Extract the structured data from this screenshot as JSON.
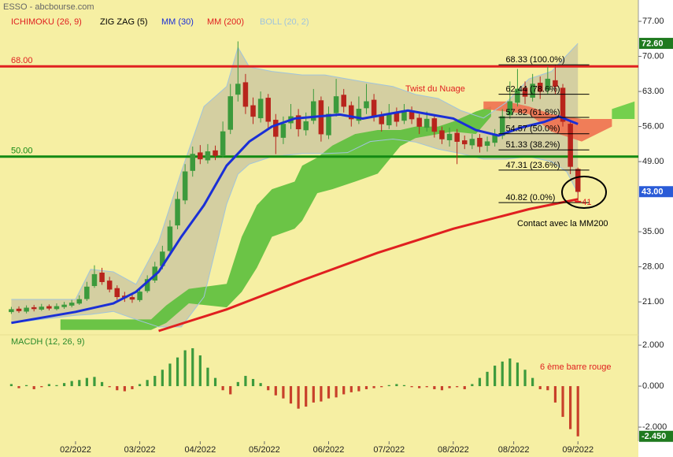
{
  "chart_data": [
    {
      "type": "candlestick",
      "title": "ESSO - abcbourse.com",
      "xlim": [
        0,
        169
      ],
      "ylim": [
        15.2,
        78.9
      ],
      "yticks": [
        {
          "value": 77,
          "label": "77.00"
        },
        {
          "value": 70,
          "label": "70.00"
        },
        {
          "value": 63,
          "label": "63.00"
        },
        {
          "value": 56,
          "label": "56.00"
        },
        {
          "value": 49,
          "label": "49.00"
        },
        {
          "value": 35,
          "label": "35.00"
        },
        {
          "value": 28,
          "label": "28.00"
        },
        {
          "value": 21,
          "label": "21.00"
        }
      ],
      "up_color": "#3c9a3c",
      "down_color": "#b8241c",
      "x": [
        3,
        5,
        7,
        9,
        11,
        13,
        15,
        17,
        19,
        21,
        23,
        25,
        27,
        29,
        31,
        33,
        35,
        37,
        39,
        41,
        43,
        45,
        47,
        49,
        51,
        53,
        55,
        57,
        59,
        61,
        63,
        65,
        67,
        69,
        71,
        73,
        75,
        77,
        79,
        81,
        83,
        85,
        87,
        89,
        91,
        93,
        95,
        97,
        99,
        101,
        103,
        105,
        107,
        109,
        111,
        113,
        115,
        117,
        119,
        121,
        123,
        125,
        127,
        129,
        131,
        133,
        135,
        137,
        139,
        141,
        143,
        145,
        147,
        149,
        151,
        153
      ],
      "open": [
        19.0,
        19.6,
        19.1,
        19.9,
        19.5,
        20.1,
        19.6,
        20.0,
        20.3,
        20.7,
        21.6,
        24.2,
        26.8,
        25.2,
        23.7,
        22.2,
        21.9,
        21.4,
        23.2,
        25.3,
        28.2,
        31.2,
        36.3,
        41.3,
        47.2,
        50.8,
        49.3,
        51.2,
        50.3,
        55.4,
        62.4,
        64.8,
        60.2,
        57.7,
        61.7,
        57.3,
        53.8,
        56.7,
        58.2,
        55.3,
        57.2,
        61.2,
        54.3,
        58.7,
        62.3,
        60.2,
        57.2,
        59.7,
        61.3,
        58.2,
        56.3,
        58.7,
        57.2,
        59.2,
        57.7,
        55.8,
        57.6,
        55.2,
        53.3,
        54.7,
        53.2,
        52.3,
        53.7,
        52.2,
        52.8,
        54.2,
        58.3,
        60.8,
        63.7,
        61.8,
        64.7,
        63.3,
        65.2,
        63.7,
        56.5,
        47.5
      ],
      "high": [
        20.0,
        20.1,
        20.3,
        20.4,
        20.6,
        20.5,
        20.7,
        21.0,
        21.4,
        22.3,
        25.0,
        28.3,
        27.8,
        26.0,
        24.3,
        23.0,
        22.6,
        23.8,
        26.3,
        29.0,
        32.2,
        37.3,
        43.0,
        48.5,
        52.0,
        52.3,
        52.5,
        52.2,
        57.0,
        64.5,
        73.0,
        66.5,
        61.8,
        63.0,
        62.5,
        58.5,
        58.0,
        60.5,
        59.5,
        58.8,
        63.5,
        62.0,
        60.0,
        65.5,
        63.5,
        61.0,
        62.0,
        64.5,
        62.5,
        59.0,
        60.5,
        59.8,
        60.5,
        60.0,
        58.5,
        59.0,
        58.2,
        56.0,
        55.8,
        55.5,
        54.2,
        54.5,
        54.5,
        54.0,
        55.5,
        59.5,
        65.0,
        67.5,
        65.0,
        66.5,
        66.0,
        68.0,
        68.3,
        64.5,
        57.0,
        47.8
      ],
      "low": [
        18.6,
        18.8,
        18.7,
        19.1,
        19.2,
        19.3,
        19.3,
        19.6,
        19.9,
        20.4,
        21.2,
        23.8,
        24.4,
        22.9,
        21.4,
        21.0,
        20.8,
        21.0,
        22.8,
        24.8,
        27.5,
        30.5,
        35.5,
        40.5,
        46.0,
        48.5,
        48.6,
        49.3,
        49.8,
        54.5,
        61.0,
        58.5,
        56.5,
        56.8,
        55.5,
        50.5,
        52.5,
        55.5,
        54.0,
        54.2,
        56.5,
        53.0,
        53.5,
        58.0,
        58.8,
        56.0,
        56.5,
        58.5,
        57.0,
        55.0,
        55.5,
        56.0,
        56.5,
        56.5,
        54.5,
        55.0,
        53.8,
        52.5,
        52.0,
        48.5,
        51.5,
        51.5,
        50.8,
        51.0,
        52.0,
        53.5,
        57.5,
        60.0,
        60.5,
        61.0,
        61.5,
        62.5,
        62.5,
        56.0,
        46.5,
        41.0
      ],
      "close": [
        19.5,
        19.2,
        19.8,
        19.6,
        20.0,
        19.7,
        20.1,
        20.4,
        20.8,
        21.5,
        24.0,
        26.5,
        25.0,
        23.5,
        22.0,
        21.8,
        21.5,
        23.0,
        25.5,
        28.0,
        31.0,
        36.0,
        41.5,
        47.0,
        50.5,
        49.5,
        51.0,
        50.2,
        55.0,
        62.0,
        64.5,
        60.0,
        58.0,
        61.5,
        57.0,
        54.0,
        56.5,
        58.0,
        55.5,
        57.0,
        61.0,
        54.5,
        58.5,
        62.0,
        60.0,
        57.5,
        59.5,
        61.0,
        58.0,
        56.5,
        58.5,
        57.0,
        59.0,
        57.5,
        56.0,
        57.5,
        55.0,
        53.5,
        54.5,
        53.0,
        52.5,
        53.5,
        52.0,
        53.0,
        54.5,
        58.0,
        61.0,
        63.5,
        62.0,
        64.5,
        63.0,
        65.5,
        64.0,
        57.0,
        48.0,
        43.0
      ],
      "ichimoku": {
        "name": "ICHIMOKU (26, 9)",
        "color": "#e02020",
        "pieces": [
          {
            "color": "#5cbf3c",
            "x": [
              16,
              30,
              40,
              44,
              50,
              60,
              64,
              68,
              72,
              78,
              80,
              84,
              88,
              94,
              100,
              106,
              110,
              116,
              120,
              126,
              130
            ],
            "upper": [
              17.5,
              17.5,
              17.5,
              20.3,
              23.6,
              24.6,
              34.0,
              40.3,
              43.5,
              45.0,
              48.2,
              49.8,
              52.2,
              54.5,
              55.3,
              55.3,
              56.0,
              56.0,
              57.0,
              59.0,
              60.0
            ],
            "lower": [
              15.4,
              15.4,
              15.4,
              16.8,
              20.7,
              19.9,
              23.0,
              27.8,
              34.0,
              35.6,
              37.2,
              42.7,
              43.5,
              45.0,
              46.6,
              52.1,
              53.7,
              54.5,
              55.0,
              54.5,
              58.0
            ]
          },
          {
            "color": "#f07050",
            "x": [
              128,
              134,
              140,
              146,
              150,
              154,
              158,
              162
            ],
            "upper": [
              61.0,
              61.0,
              60.0,
              58.5,
              58.0,
              57.5,
              57.5,
              57.5
            ],
            "lower": [
              59.5,
              59.0,
              58.5,
              55.0,
              54.0,
              53.0,
              54.5,
              56.0
            ]
          },
          {
            "color": "#66cc44",
            "x": [
              162,
              168
            ],
            "upper": [
              59.5,
              61.0
            ],
            "lower": [
              57.5,
              57.5
            ]
          }
        ]
      },
      "zigzag": {
        "name": "ZIG ZAG (5)",
        "color": "#000000"
      },
      "bollinger": {
        "name": "BOLL (20, 2)",
        "color": "#a0c4dc",
        "fill": "#c8c4a0",
        "x": [
          3,
          20,
          24,
          30,
          36,
          42,
          48,
          54,
          60,
          63,
          66,
          72,
          80,
          86,
          92,
          98,
          104,
          110,
          116,
          122,
          128,
          134,
          140,
          146,
          150,
          153
        ],
        "upper": [
          21.5,
          21.5,
          27.5,
          27.0,
          24.5,
          33.0,
          47.0,
          60.0,
          64.0,
          71.8,
          67.9,
          67.0,
          66.3,
          66.3,
          65.5,
          64.7,
          64.0,
          62.4,
          61.6,
          59.2,
          57.7,
          60.8,
          65.5,
          67.0,
          70.2,
          72.6
        ],
        "lower": [
          16.8,
          18.3,
          18.5,
          19.1,
          17.5,
          16.0,
          16.0,
          22.0,
          40.5,
          46.5,
          48.5,
          50.0,
          50.6,
          50.6,
          50.8,
          53.0,
          53.5,
          52.9,
          51.5,
          50.6,
          49.5,
          49.5,
          50.0,
          49.0,
          47.0,
          42.7
        ]
      },
      "series": [
        {
          "name": "MM (30)",
          "color": "#1a2fd6",
          "x": [
            3,
            20,
            30,
            36,
            42,
            48,
            54,
            60,
            66,
            72,
            78,
            84,
            90,
            96,
            102,
            108,
            114,
            120,
            126,
            132,
            138,
            144,
            148,
            153
          ],
          "values": [
            16.8,
            19.0,
            20.7,
            23.0,
            27.0,
            34.0,
            40.3,
            48.2,
            53.0,
            56.0,
            57.6,
            58.0,
            58.4,
            57.6,
            58.4,
            59.2,
            58.4,
            57.6,
            55.3,
            54.2,
            55.8,
            56.9,
            58.0,
            56.5
          ]
        },
        {
          "name": "MM (200)",
          "color": "#e02020",
          "x": [
            42,
            60,
            80,
            100,
            120,
            140,
            153
          ],
          "values": [
            15.2,
            19.5,
            25.3,
            30.8,
            35.6,
            39.5,
            41.5
          ]
        }
      ],
      "levels": [
        {
          "value": 68,
          "label": "68.00",
          "color": "#e02020"
        },
        {
          "value": 50,
          "label": "50.00",
          "color": "#138a13"
        }
      ],
      "fib_range": [
        132,
        156
      ],
      "fib_levels": [
        {
          "value": 68.33,
          "label": "68.33 (100.0%)"
        },
        {
          "value": 62.44,
          "label": "62.44 (78.6%)"
        },
        {
          "value": 57.82,
          "label": "57.82 (61.8%)"
        },
        {
          "value": 54.57,
          "label": "54.57 (50.0%)"
        },
        {
          "value": 51.33,
          "label": "51.33 (38.2%)"
        },
        {
          "value": 47.31,
          "label": "47.31 (23.6%)"
        },
        {
          "value": 40.82,
          "label": "40.82 (0.0%)"
        }
      ],
      "price_labels": [
        {
          "value": 72.6,
          "label": "72.60",
          "color": "#1f7a1f"
        },
        {
          "value": 43.0,
          "label": "43.00",
          "color": "#2a5bd7"
        }
      ],
      "annotations": [
        "Twist du Nuage",
        "Contact avec la MM200"
      ],
      "low_label": 41
    },
    {
      "type": "bar",
      "title": "MACDH (12, 26, 9)",
      "xlim": [
        0,
        169
      ],
      "ylim": [
        -2.69,
        2.31
      ],
      "yticks": [
        {
          "value": 2,
          "label": "2.000"
        },
        {
          "value": 0,
          "label": "0.000"
        },
        {
          "value": -2,
          "label": "-2.000"
        }
      ],
      "xticks": [
        {
          "value": 20,
          "label": "02/2022"
        },
        {
          "value": 37,
          "label": "03/2022"
        },
        {
          "value": 53,
          "label": "04/2022"
        },
        {
          "value": 70,
          "label": "05/2022"
        },
        {
          "value": 87,
          "label": "06/2022"
        },
        {
          "value": 103,
          "label": "07/2022"
        },
        {
          "value": 120,
          "label": "08/2022"
        },
        {
          "value": 136,
          "label": "08/2022"
        },
        {
          "value": 153,
          "label": "09/2022"
        }
      ],
      "up_color": "#3c9a3c",
      "down_color": "#c8402a",
      "x": [
        3,
        5,
        7,
        9,
        11,
        13,
        15,
        17,
        19,
        21,
        23,
        25,
        27,
        29,
        31,
        33,
        35,
        37,
        39,
        41,
        43,
        45,
        47,
        49,
        51,
        53,
        55,
        57,
        59,
        61,
        63,
        65,
        67,
        69,
        71,
        73,
        75,
        77,
        79,
        81,
        83,
        85,
        87,
        89,
        91,
        93,
        95,
        97,
        99,
        101,
        103,
        105,
        107,
        109,
        111,
        113,
        115,
        117,
        119,
        121,
        123,
        125,
        127,
        129,
        131,
        133,
        135,
        137,
        139,
        141,
        143,
        145,
        147,
        149,
        151,
        153
      ],
      "values": [
        0.1,
        -0.1,
        0.05,
        -0.15,
        -0.05,
        0.1,
        0.05,
        0.15,
        0.25,
        0.3,
        0.4,
        0.45,
        0.2,
        -0.05,
        -0.2,
        -0.25,
        -0.15,
        0.1,
        0.3,
        0.5,
        0.8,
        1.1,
        1.4,
        1.75,
        1.85,
        1.5,
        0.9,
        0.4,
        -0.2,
        -0.4,
        0.2,
        0.5,
        0.35,
        0.15,
        -0.2,
        -0.45,
        -0.6,
        -0.85,
        -1.1,
        -1.0,
        -0.8,
        -0.75,
        -0.6,
        -0.55,
        -0.4,
        -0.3,
        -0.25,
        -0.15,
        -0.1,
        -0.05,
        0.05,
        0.1,
        0.05,
        -0.05,
        -0.1,
        -0.05,
        -0.15,
        -0.2,
        -0.1,
        -0.05,
        -0.15,
        0.1,
        0.4,
        0.7,
        1.0,
        1.2,
        1.35,
        1.15,
        0.8,
        0.4,
        -0.15,
        -0.2,
        -0.8,
        -1.5,
        -2.1,
        -2.45
      ],
      "last_label": {
        "value": -2.45,
        "label": "-2.450",
        "color": "#1f7a1f"
      },
      "annotation": "6 ème barre rouge"
    }
  ]
}
